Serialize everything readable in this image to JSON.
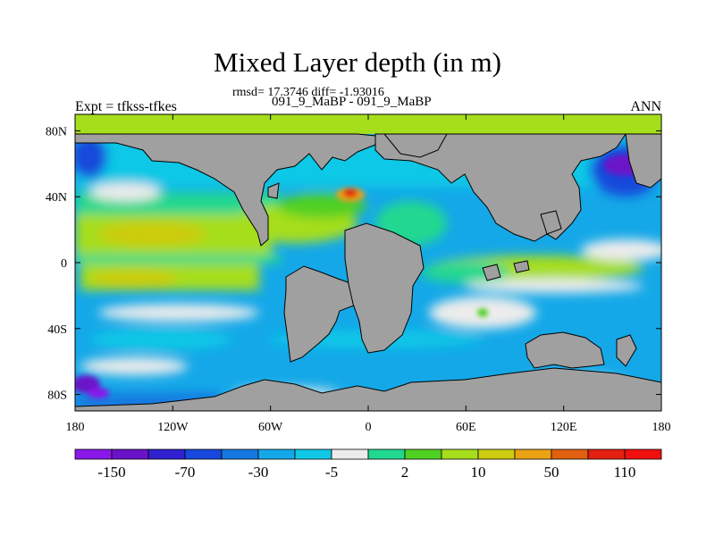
{
  "title": "Mixed Layer depth (in m)",
  "stats_line": "rmsd= 17.3746 diff= -1.93016",
  "period_line": "091_9_MaBP - 091_9_MaBP",
  "experiment_label": "Expt = tfkss-tfkes",
  "season_label": "ANN",
  "map": {
    "projection": "cylindrical-equidistant",
    "lon_range": [
      -180,
      180
    ],
    "lat_range": [
      -90,
      90
    ],
    "land_color": "#a0a0a0",
    "lon_ticks": [
      {
        "value": -180,
        "label": "180"
      },
      {
        "value": -120,
        "label": "120W"
      },
      {
        "value": -60,
        "label": "60W"
      },
      {
        "value": 0,
        "label": "0"
      },
      {
        "value": 60,
        "label": "60E"
      },
      {
        "value": 120,
        "label": "120E"
      },
      {
        "value": 180,
        "label": "180"
      }
    ],
    "lat_ticks": [
      {
        "value": 80,
        "label": "80N"
      },
      {
        "value": 40,
        "label": "40N"
      },
      {
        "value": 0,
        "label": "0"
      },
      {
        "value": -40,
        "label": "40S"
      },
      {
        "value": -80,
        "label": "80S"
      }
    ]
  },
  "colorbar": {
    "colors": [
      "#8a18e8",
      "#6a12c8",
      "#3020d0",
      "#1848dc",
      "#1478e0",
      "#14a8e8",
      "#10c8e6",
      "#ececec",
      "#20d890",
      "#50d020",
      "#a6de1c",
      "#cccc10",
      "#e8a214",
      "#e06010",
      "#e42010",
      "#f01010"
    ],
    "labels": [
      {
        "after_index": 0,
        "text": "-150"
      },
      {
        "after_index": 2,
        "text": "-70"
      },
      {
        "after_index": 4,
        "text": "-30"
      },
      {
        "after_index": 6,
        "text": "-5"
      },
      {
        "after_index": 8,
        "text": "2"
      },
      {
        "after_index": 10,
        "text": "10"
      },
      {
        "after_index": 12,
        "text": "50"
      },
      {
        "after_index": 14,
        "text": "110"
      }
    ]
  }
}
